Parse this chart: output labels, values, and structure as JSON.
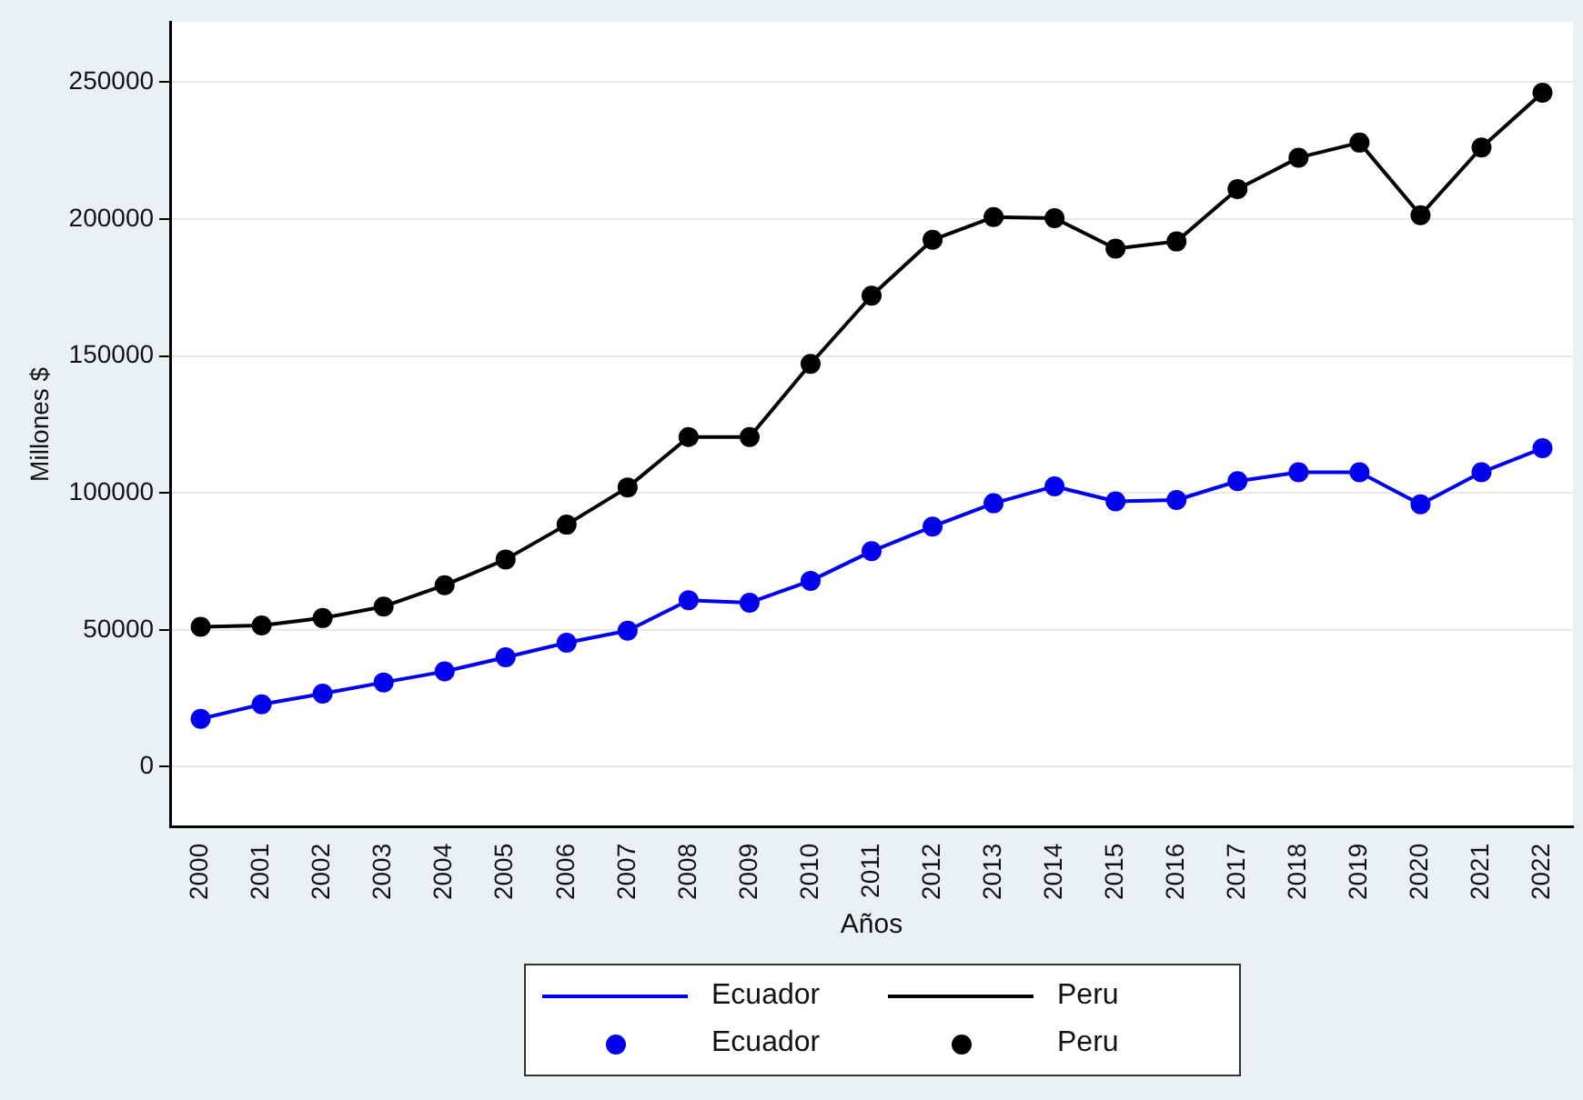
{
  "chart_data": {
    "type": "line",
    "xlabel": "Años",
    "ylabel": "Millones $",
    "categories": [
      "2000",
      "2001",
      "2002",
      "2003",
      "2004",
      "2005",
      "2006",
      "2007",
      "2008",
      "2009",
      "2010",
      "2011",
      "2012",
      "2013",
      "2014",
      "2015",
      "2016",
      "2017",
      "2018",
      "2019",
      "2020",
      "2021",
      "2022"
    ],
    "series": [
      {
        "name": "Ecuador",
        "color": "#0000ee",
        "values": [
          17500,
          22800,
          26700,
          30800,
          34800,
          40000,
          45300,
          49700,
          60800,
          59900,
          67900,
          78700,
          87700,
          96200,
          102400,
          96900,
          97400,
          104300,
          107500,
          107500,
          95800,
          107500,
          116300
        ]
      },
      {
        "name": "Peru",
        "color": "#000000",
        "values": [
          51100,
          51600,
          54300,
          58500,
          66300,
          75700,
          88400,
          102000,
          120400,
          120400,
          147100,
          172000,
          192400,
          200700,
          200300,
          189200,
          191800,
          210900,
          222400,
          227900,
          201400,
          226100,
          246100
        ]
      }
    ],
    "ylim": [
      -22000,
      272000
    ],
    "yticks": [
      0,
      50000,
      100000,
      150000,
      200000,
      250000
    ],
    "grid": "y",
    "legend": "bottom",
    "marker": "circle",
    "line_style": "solid"
  }
}
